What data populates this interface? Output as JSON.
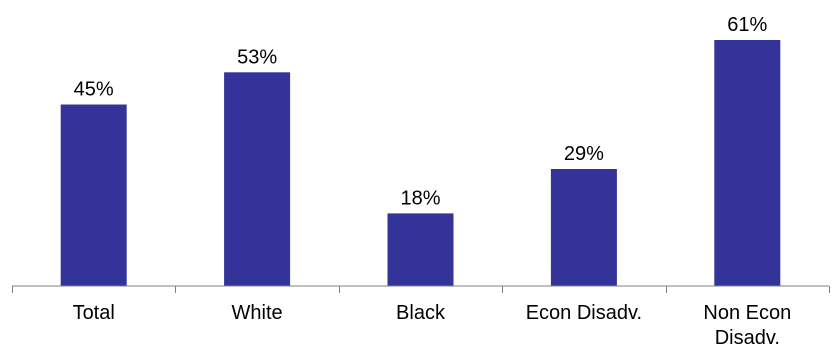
{
  "chart_data": {
    "type": "bar",
    "categories": [
      [
        "Total"
      ],
      [
        "White"
      ],
      [
        "Black"
      ],
      [
        "Econ Disadv."
      ],
      [
        "Non Econ",
        "Disadv."
      ]
    ],
    "values": [
      45,
      53,
      18,
      29,
      61
    ],
    "value_labels": [
      "45%",
      "53%",
      "18%",
      "29%",
      "61%"
    ],
    "unit": "%",
    "ylim": [
      0,
      65
    ],
    "title": "",
    "xlabel": "",
    "ylabel": "",
    "grid": false,
    "legend": "none",
    "colors": {
      "bar": "#333399",
      "axis": "#808080",
      "text": "#000000"
    }
  }
}
